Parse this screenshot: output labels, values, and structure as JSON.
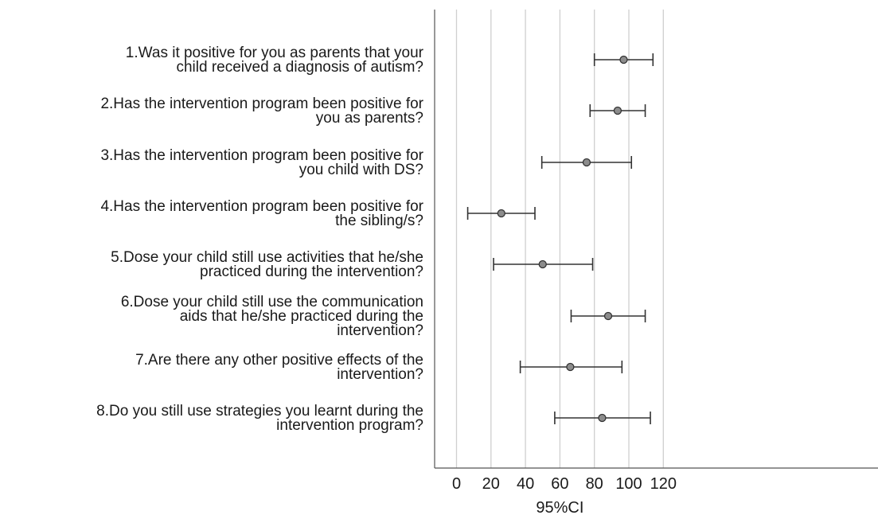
{
  "chart_data": {
    "type": "forest",
    "xlabel": "95%CI",
    "xlim": [
      -6,
      120
    ],
    "xticks": [
      0,
      20,
      40,
      60,
      80,
      100,
      120
    ],
    "grid": "vertical",
    "colors": {
      "point": "#8c8c8c",
      "line": "#333333",
      "grid": "#cfcfcf"
    },
    "items": [
      {
        "label": [
          "1.Was it positive for you as parents that your",
          "child received a diagnosis of autism?"
        ],
        "mean": 97,
        "low": 80,
        "high": 114
      },
      {
        "label": [
          "2.Has the intervention program been positive for",
          "you as parents?"
        ],
        "mean": 93.5,
        "low": 77.5,
        "high": 109.5
      },
      {
        "label": [
          "3.Has the intervention program been positive for",
          "you child with DS?"
        ],
        "mean": 75.5,
        "low": 49.5,
        "high": 101.5
      },
      {
        "label": [
          "4.Has the intervention program been positive for",
          "the sibling/s?"
        ],
        "mean": 26,
        "low": 6.5,
        "high": 45.5
      },
      {
        "label": [
          "5.Dose your child still use activities that he/she",
          "practiced during the intervention?"
        ],
        "mean": 50,
        "low": 21.5,
        "high": 79
      },
      {
        "label": [
          "6.Dose your child still use the communication",
          "aids that he/she practiced during the",
          "intervention?"
        ],
        "mean": 88,
        "low": 66.5,
        "high": 109.5
      },
      {
        "label": [
          "7.Are there any other positive effects of the",
          "intervention?"
        ],
        "mean": 66,
        "low": 37,
        "high": 96
      },
      {
        "label": [
          "8.Do you  still use strategies you learnt during the",
          "intervention program?"
        ],
        "mean": 84.5,
        "low": 57,
        "high": 112.5
      }
    ]
  }
}
